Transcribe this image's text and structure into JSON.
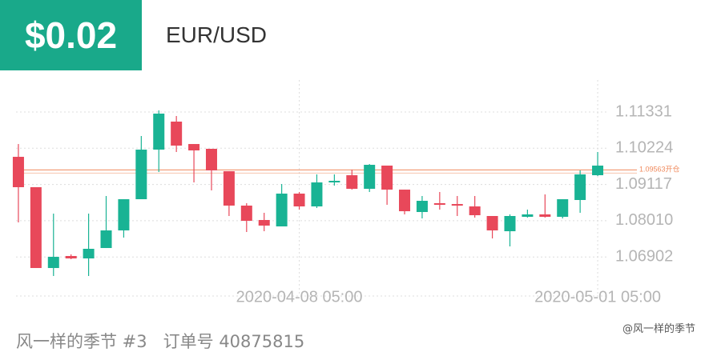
{
  "header": {
    "price": "$0.02",
    "symbol": "EUR/USD"
  },
  "footer": {
    "name": "风一样的季节 #3",
    "order": "订单号 40875815",
    "watermark": "@风一样的季节"
  },
  "chart_data": {
    "type": "candlestick",
    "categories": [
      null,
      null,
      null,
      null,
      null,
      null,
      null,
      null,
      null,
      null,
      null,
      null,
      null,
      null,
      null,
      null,
      "2020-04-08 05:00",
      null,
      null,
      null,
      null,
      null,
      null,
      null,
      null,
      null,
      null,
      null,
      null,
      null,
      null,
      null,
      null,
      "2020-05-01 05:00"
    ],
    "open": [
      1.09962,
      1.09034,
      1.06565,
      1.06932,
      1.06858,
      1.07176,
      1.07714,
      1.08667,
      1.10182,
      1.11038,
      1.10353,
      1.10207,
      1.09522,
      1.08472,
      1.08032,
      1.07836,
      1.08838,
      1.08447,
      1.09205,
      1.094,
      1.08985,
      1.09694,
      1.0896,
      1.08276,
      1.08545,
      1.0852,
      1.08447,
      1.08154,
      1.07689,
      1.08129,
      1.08203,
      1.08129,
      1.08643,
      1.094
    ],
    "high": [
      1.10353,
      1.09034,
      1.08227,
      1.06981,
      1.08227,
      1.08765,
      1.08667,
      1.10598,
      1.1138,
      1.11209,
      1.10353,
      1.10207,
      1.09522,
      1.08545,
      1.08252,
      1.09131,
      1.08887,
      1.09425,
      1.09425,
      1.09571,
      1.09742,
      1.09694,
      1.0896,
      1.08765,
      1.08887,
      1.08765,
      1.08765,
      1.08154,
      1.08203,
      1.08349,
      1.08814,
      1.08667,
      1.09547,
      1.10109
    ],
    "low": [
      1.07958,
      1.06565,
      1.06321,
      1.06834,
      1.06321,
      1.07176,
      1.07494,
      1.08667,
      1.09498,
      1.10109,
      1.0918,
      1.08936,
      1.08154,
      1.07665,
      1.07689,
      1.07836,
      1.08349,
      1.08398,
      1.09083,
      1.0896,
      1.08887,
      1.08496,
      1.08203,
      1.0808,
      1.08349,
      1.08154,
      1.08105,
      1.07469,
      1.07225,
      1.08105,
      1.08105,
      1.0808,
      1.08252,
      1.09376
    ],
    "close": [
      1.09034,
      1.06565,
      1.06907,
      1.06858,
      1.07152,
      1.07714,
      1.08667,
      1.10182,
      1.11282,
      1.10305,
      1.10158,
      1.09547,
      1.08472,
      1.08007,
      1.07861,
      1.08838,
      1.08447,
      1.0918,
      1.09229,
      1.08985,
      1.09718,
      1.0896,
      1.083,
      1.08618,
      1.0852,
      1.08496,
      1.08178,
      1.07714,
      1.08154,
      1.08203,
      1.08129,
      1.08667,
      1.09425,
      1.09694
    ],
    "up_color": "#19b394",
    "down_color": "#e8485a",
    "ylim": [
      1.0571,
      1.12309
    ],
    "yticks": [
      1.11331,
      1.10224,
      1.09117,
      {
        "value": 1.0801,
        "label": "1.08010"
      },
      1.06902
    ],
    "grid": true,
    "price_line": {
      "value": 1.09563,
      "label": "1.09563开仓",
      "color": "#f08a5d"
    }
  }
}
